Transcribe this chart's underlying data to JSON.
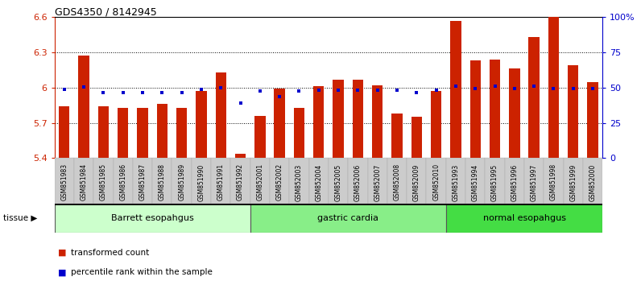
{
  "title": "GDS4350 / 8142945",
  "samples": [
    "GSM851983",
    "GSM851984",
    "GSM851985",
    "GSM851986",
    "GSM851987",
    "GSM851988",
    "GSM851989",
    "GSM851990",
    "GSM851991",
    "GSM851992",
    "GSM852001",
    "GSM852002",
    "GSM852003",
    "GSM852004",
    "GSM852005",
    "GSM852006",
    "GSM852007",
    "GSM852008",
    "GSM852009",
    "GSM852010",
    "GSM851993",
    "GSM851994",
    "GSM851995",
    "GSM851996",
    "GSM851997",
    "GSM851998",
    "GSM851999",
    "GSM852000"
  ],
  "bar_values": [
    5.84,
    6.27,
    5.84,
    5.83,
    5.83,
    5.86,
    5.83,
    5.97,
    6.13,
    5.44,
    5.76,
    5.99,
    5.83,
    6.01,
    6.07,
    6.07,
    6.02,
    5.78,
    5.75,
    5.97,
    6.57,
    6.23,
    6.24,
    6.16,
    6.43,
    6.6,
    6.19,
    6.05
  ],
  "percentile_values": [
    5.984,
    6.005,
    5.961,
    5.961,
    5.961,
    5.961,
    5.961,
    5.985,
    6.0,
    5.87,
    5.97,
    5.925,
    5.97,
    5.976,
    5.976,
    5.978,
    5.976,
    5.978,
    5.96,
    5.978,
    6.01,
    5.99,
    6.01,
    5.99,
    6.01,
    5.99,
    5.99,
    5.992
  ],
  "groups": [
    {
      "label": "Barrett esopahgus",
      "start": 0,
      "end": 9,
      "color": "#ccffcc"
    },
    {
      "label": "gastric cardia",
      "start": 10,
      "end": 19,
      "color": "#88ee88"
    },
    {
      "label": "normal esopahgus",
      "start": 20,
      "end": 27,
      "color": "#44dd44"
    }
  ],
  "ylim": [
    5.4,
    6.6
  ],
  "yticks": [
    5.4,
    5.7,
    6.0,
    6.3,
    6.6
  ],
  "ytick_labels": [
    "5.4",
    "5.7",
    "6",
    "6.3",
    "6.6"
  ],
  "right_yticks_pct": [
    0,
    25,
    50,
    75,
    100
  ],
  "right_ytick_labels": [
    "0",
    "25",
    "50",
    "75",
    "100%"
  ],
  "gridlines": [
    5.7,
    6.0,
    6.3
  ],
  "bar_color": "#cc2200",
  "dot_color": "#0000cc",
  "bar_bottom": 5.4,
  "background_color": "#ffffff"
}
